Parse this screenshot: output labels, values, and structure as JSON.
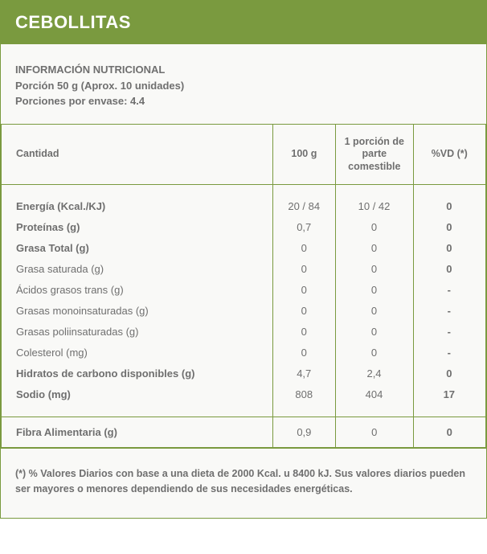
{
  "title": "CEBOLLITAS",
  "info": {
    "heading": "INFORMACIÓN NUTRICIONAL",
    "portion": "Porción 50 g (Aprox. 10 unidades)",
    "servings": "Porciones por envase: 4.4"
  },
  "headers": {
    "qty": "Cantidad",
    "per100g": "100 g",
    "perPortion": "1 porción de parte comestible",
    "vd": "%VD (*)"
  },
  "rows": [
    {
      "label": "Energía (Kcal./KJ)",
      "bold": true,
      "c100": "20 / 84",
      "cpor": "10 / 42",
      "vd": "0"
    },
    {
      "label": "Proteínas (g)",
      "bold": true,
      "c100": "0,7",
      "cpor": "0",
      "vd": "0"
    },
    {
      "label": "Grasa Total (g)",
      "bold": true,
      "c100": "0",
      "cpor": "0",
      "vd": "0"
    },
    {
      "label": "Grasa saturada (g)",
      "bold": false,
      "c100": "0",
      "cpor": "0",
      "vd": "0"
    },
    {
      "label": "Ácidos grasos trans (g)",
      "bold": false,
      "c100": "0",
      "cpor": "0",
      "vd": "-"
    },
    {
      "label": "Grasas monoinsaturadas (g)",
      "bold": false,
      "c100": "0",
      "cpor": "0",
      "vd": "-"
    },
    {
      "label": "Grasas poliinsaturadas (g)",
      "bold": false,
      "c100": "0",
      "cpor": "0",
      "vd": "-"
    },
    {
      "label": "Colesterol (mg)",
      "bold": false,
      "c100": "0",
      "cpor": "0",
      "vd": "-"
    },
    {
      "label": "Hidratos de carbono disponibles (g)",
      "bold": true,
      "c100": "4,7",
      "cpor": "2,4",
      "vd": "0"
    },
    {
      "label": "Sodio (mg)",
      "bold": true,
      "c100": "808",
      "cpor": "404",
      "vd": "17"
    }
  ],
  "fiber": {
    "label": "Fibra Alimentaria (g)",
    "c100": "0,9",
    "cpor": "0",
    "vd": "0"
  },
  "footnote": "(*) % Valores Diarios con base a una dieta de 2000 Kcal. u 8400 kJ. Sus valores diarios pueden ser mayores o menores dependiendo de sus necesidades energéticas.",
  "colors": {
    "accent": "#7a9a3f",
    "text": "#6f6f6f",
    "panel_bg": "#f9f9f7"
  }
}
